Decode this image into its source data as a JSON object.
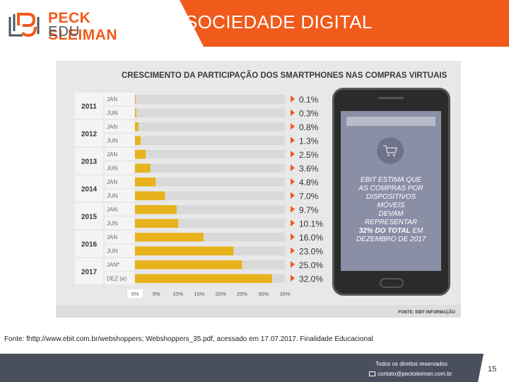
{
  "header": {
    "brand_line1": "PECK SLEIMAN",
    "brand_line2": "EDU",
    "title": "SOCIEDADE DIGITAL",
    "accent_color": "#f05a1a"
  },
  "chart_data": {
    "type": "bar",
    "orientation": "horizontal",
    "title": "CRESCIMENTO DA PARTICIPAÇÃO DOS SMARTPHONES NAS COMPRAS VIRTUAIS",
    "years": [
      "2011",
      "2012",
      "2013",
      "2014",
      "2015",
      "2016",
      "2017"
    ],
    "categories": [
      "JAN",
      "JUN",
      "JAN",
      "JUN",
      "JAN",
      "JUN",
      "JAN",
      "JUN",
      "JAN",
      "JUN",
      "JAN",
      "JUN",
      "JAN*",
      "DEZ (e)"
    ],
    "values": [
      0.1,
      0.3,
      0.8,
      1.3,
      2.5,
      3.6,
      4.8,
      7.0,
      9.7,
      10.1,
      16.0,
      23.0,
      25.0,
      32.0
    ],
    "value_labels": [
      "0.1%",
      "0.3%",
      "0.8%",
      "1.3%",
      "2.5%",
      "3.6%",
      "4.8%",
      "7.0%",
      "9.7%",
      "10.1%",
      "16.0%",
      "23.0%",
      "25.0%",
      "32.0%"
    ],
    "xticks": [
      "0%",
      "5%",
      "10%",
      "15%",
      "20%",
      "25%",
      "30%",
      "35%"
    ],
    "xlim": [
      0,
      35
    ],
    "bar_color": "#e8b21c",
    "track_color": "#d9d9d9",
    "marker_color": "#f05a1a",
    "source": "FONTE: EBIT INFORMAÇÃO"
  },
  "phone": {
    "text_line1": "EBIT ESTIMA QUE",
    "text_line2": "AS COMPRAS POR",
    "text_line3": "DISPOSITIVOS",
    "text_line4": "MÓVEIS",
    "text_line5": "DEVAM",
    "text_line6": "REPRESENTAR",
    "text_bold": "32% DO TOTAL",
    "text_line7_tail": "EM",
    "text_line8": "DEZEMBRO DE 2017",
    "icon": "shopping-cart-icon"
  },
  "footnote": "Fonte: fhttp://www.ebit.com.br/webshoppers; Webshoppers_35.pdf, acessado em 17.07.2017.  Finalidade Educacional",
  "footer": {
    "rights": "Todos os direitos reservados",
    "contact": "contato@pecksleiman.com.br",
    "page": "15"
  }
}
